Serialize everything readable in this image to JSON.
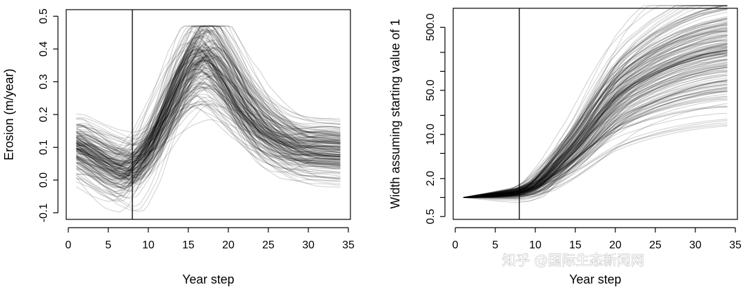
{
  "chart_data": [
    {
      "type": "line",
      "xlabel": "Year step",
      "ylabel": "Erosion (m/year)",
      "xlim": [
        0,
        35
      ],
      "ylim": [
        -0.12,
        0.52
      ],
      "xticks": [
        0,
        5,
        10,
        15,
        20,
        25,
        30,
        35
      ],
      "xtick_labels": [
        "0",
        "5",
        "10",
        "15",
        "20",
        "25",
        "30",
        "35"
      ],
      "yticks": [
        -0.1,
        0.0,
        0.1,
        0.2,
        0.3,
        0.4,
        0.5
      ],
      "ytick_labels": [
        "-0.1",
        "0.0",
        "0.1",
        "0.2",
        "0.3",
        "0.4",
        "0.5"
      ],
      "vline_x": 8,
      "n_series": 180,
      "x_range": [
        1,
        34
      ],
      "series_color": "#000000",
      "series_opacity": 0.16,
      "median_curve": {
        "x": [
          1,
          3,
          5,
          7,
          8,
          10,
          12,
          14,
          16,
          17,
          18,
          20,
          22,
          24,
          26,
          28,
          30,
          32,
          34
        ],
        "y": [
          0.105,
          0.075,
          0.045,
          0.025,
          0.03,
          0.09,
          0.19,
          0.3,
          0.375,
          0.385,
          0.37,
          0.3,
          0.22,
          0.16,
          0.125,
          0.1,
          0.09,
          0.09,
          0.085
        ]
      },
      "envelope": {
        "min": -0.1,
        "max": 0.47
      }
    },
    {
      "type": "line",
      "xlabel": "Year step",
      "ylabel": "Width assuming starting value of 1",
      "xlim": [
        0,
        35
      ],
      "yscale": "log",
      "ylim": [
        0.45,
        1000
      ],
      "xticks": [
        0,
        5,
        10,
        15,
        20,
        25,
        30,
        35
      ],
      "xtick_labels": [
        "0",
        "5",
        "10",
        "15",
        "20",
        "25",
        "30",
        "35"
      ],
      "yticks": [
        0.5,
        1,
        2,
        5,
        10,
        20,
        50,
        100,
        200,
        500
      ],
      "ytick_labels": [
        "0.5",
        "",
        "2.0",
        "",
        "10.0",
        "",
        "50.0",
        "",
        "",
        "500.0"
      ],
      "vline_x": 8,
      "n_series": 180,
      "x_range": [
        1,
        34
      ],
      "series_color": "#000000",
      "series_opacity": 0.16,
      "median_curve": {
        "x": [
          1,
          3,
          5,
          8,
          10,
          12,
          15,
          18,
          20,
          22,
          25,
          28,
          31,
          34
        ],
        "y": [
          1.0,
          1.05,
          1.1,
          1.2,
          1.5,
          2.5,
          6,
          18,
          35,
          55,
          90,
          130,
          170,
          200
        ]
      },
      "envelope": {
        "min": 0.55,
        "max": 1100
      }
    }
  ],
  "watermark": {
    "text": "知乎 @国际生态新闻网"
  }
}
